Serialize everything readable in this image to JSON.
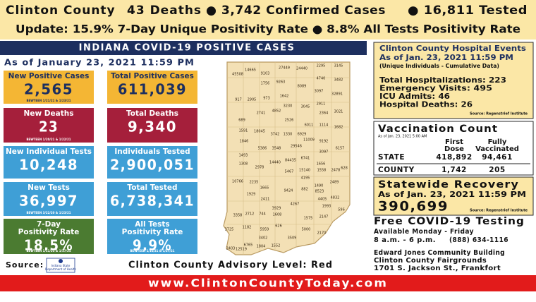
{
  "header": {
    "county": "Clinton County",
    "deaths": "43 Deaths",
    "confirmed": "● 3,742 Confirmed Cases",
    "tested": "● 16,811 Tested",
    "update": "Update: 15.9% 7-Day Unique Positivity Rate ● 8.8% All Tests Positivity Rate"
  },
  "banner": "INDIANA COVID-19 POSITIVE CASES",
  "as_of": "As of January 23, 2021 11:59 PM",
  "stats": [
    {
      "label": [
        "New Positive Cases"
      ],
      "value": "2,565",
      "note": "BEWTEEN 1/21/21 & 1/23/21"
    },
    {
      "label": [
        "Total Positive Cases"
      ],
      "value": "611,039"
    },
    {
      "label": [
        "New Deaths"
      ],
      "value": "23",
      "note": "BEWTEEN 1/20/21 & 1/22/21"
    },
    {
      "label": [
        "Total Deaths"
      ],
      "value": "9,340"
    },
    {
      "label": [
        "New Individual Tests"
      ],
      "value": "10,248"
    },
    {
      "label": [
        "Individuals Tested"
      ],
      "value": "2,900,051"
    },
    {
      "label": [
        "New Tests"
      ],
      "value": "36,997",
      "note": "BEWTEEN 3/22/20 & 1/23/21"
    },
    {
      "label": [
        "Total Tested"
      ],
      "value": "6,738,341"
    },
    {
      "label": [
        "7-Day",
        "Positivity Rate"
      ],
      "value": "18.5%",
      "note": "BEWTEEN 1/11/21 & 1/17/21"
    },
    {
      "label": [
        "All Tests",
        "Positivity Rate"
      ],
      "value": "9.9%",
      "note": "BEWTEEN 1/11/21 & 1/17/21"
    }
  ],
  "map_labels": [
    45508,
    14665,
    9103,
    27449,
    24440,
    2295,
    3145,
    1756,
    9263,
    4740,
    3482,
    8089,
    3097,
    32891,
    917,
    2905,
    973,
    1642,
    3230,
    3045,
    2911,
    2741,
    4852,
    2364,
    3021,
    689,
    1591,
    2526,
    6011,
    1114,
    1682,
    18045,
    3742,
    1330,
    6929,
    1846,
    5386,
    3548,
    29546,
    11009,
    9192,
    3097,
    6157,
    1493,
    1308,
    2978,
    14440,
    84435,
    6741,
    1656,
    5467,
    15140,
    4195,
    1558,
    2478,
    628,
    10766,
    2235,
    1665,
    1490,
    1929,
    9424,
    882,
    8523,
    2489,
    2411,
    4405,
    4832,
    3929,
    4267,
    1993,
    596,
    3358,
    2712,
    744,
    1608,
    1575,
    2147,
    3725,
    1182,
    5959,
    626,
    5000,
    3402,
    3509,
    2170,
    6765,
    1804,
    1552,
    2403,
    12519
  ],
  "source_label": "Source:",
  "logo_text": [
    "Indiana State",
    "Department of Health"
  ],
  "advisory": "Clinton County Advisory Level: Red",
  "hospital": {
    "title": "Clinton County Hospital Events",
    "as_of": "As of Jan. 23, 2021 11:59 PM",
    "sub": "(Unique Individuals - Cumulative Data)",
    "lines": [
      "Total Hospitalizations: 223",
      "Emergency Visits: 495",
      "ICU Admits: 46",
      "Hospital Deaths: 26"
    ],
    "source": "Source: Regenstrief Institute"
  },
  "vaccination": {
    "title": "Vaccination Count",
    "as_of": "As of Jan. 23, 2021 5:00 AM",
    "columns": [
      [
        "First",
        "Dose"
      ],
      [
        "Fully",
        "Vaccinated"
      ]
    ],
    "rows": [
      [
        "STATE",
        "418,892",
        "94,461"
      ],
      [
        "COUNTY",
        "1,742",
        "205"
      ]
    ]
  },
  "recovery": {
    "title": "Statewide Recovery",
    "as_of": "As of Jan. 23, 2021 11:59 PM",
    "value": "390,699",
    "source": "Source: Regenstrief Institute"
  },
  "testing": {
    "title": "Free COVID-19 Testing",
    "days": "Available Monday - Friday",
    "hours": "8 a.m. - 6 p.m.",
    "phone": "(888) 634-1116",
    "location": [
      "Edward Jones Community Building",
      "Clinton County Fairgrounds",
      "1701 S. Jackson St., Frankfort"
    ]
  },
  "footer": "www.ClintonCountyToday.com"
}
